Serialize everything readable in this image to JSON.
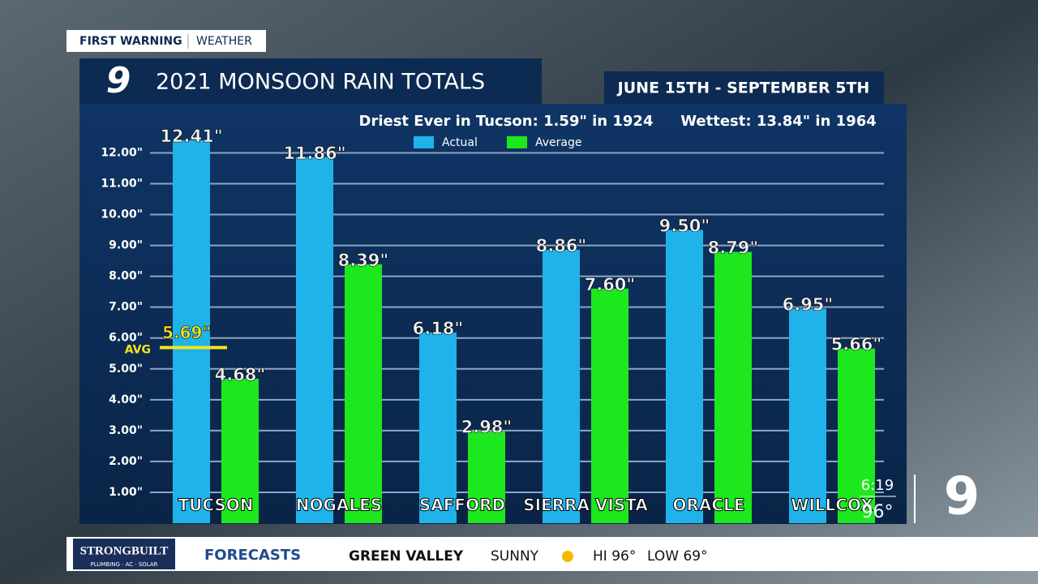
{
  "branding": {
    "brand": "FIRST WARNING",
    "section": "WEATHER",
    "channel": "9"
  },
  "chart_data": {
    "type": "bar",
    "title": "2021 MONSOON RAIN TOTALS",
    "subtitle": "JUNE 15TH - SEPTEMBER 5TH",
    "annotations": [
      "Driest Ever in Tucson: 1.59\" in 1924",
      "Wettest: 13.84\" in 1964"
    ],
    "categories": [
      "TUCSON",
      "NOGALES",
      "SAFFORD",
      "SIERRA VISTA",
      "ORACLE",
      "WILLCOX"
    ],
    "series": [
      {
        "name": "Actual",
        "color": "#1fb3ea",
        "values": [
          12.41,
          11.86,
          6.18,
          8.86,
          9.5,
          6.95
        ],
        "value_labels": [
          "12.41\"",
          "11.86\"",
          "6.18\"",
          "8.86\"",
          "9.50\"",
          "6.95\""
        ]
      },
      {
        "name": "Average",
        "color": "#1de81d",
        "values": [
          4.68,
          8.39,
          2.98,
          7.6,
          8.79,
          5.66
        ],
        "value_labels": [
          "4.68\"",
          "8.39\"",
          "2.98\"",
          "7.60\"",
          "8.79\"",
          "5.66\""
        ]
      }
    ],
    "ylim": [
      0,
      12.8
    ],
    "yticks": [
      {
        "value": 1,
        "label": "1.00\""
      },
      {
        "value": 2,
        "label": "2.00\""
      },
      {
        "value": 3,
        "label": "3.00\""
      },
      {
        "value": 4,
        "label": "4.00\""
      },
      {
        "value": 5,
        "label": "5.00\""
      },
      {
        "value": 6,
        "label": "6.00\""
      },
      {
        "value": 7,
        "label": "7.00\""
      },
      {
        "value": 8,
        "label": "8.00\""
      },
      {
        "value": 9,
        "label": "9.00\""
      },
      {
        "value": 10,
        "label": "10.00\""
      },
      {
        "value": 11,
        "label": "11.00\""
      },
      {
        "value": 12,
        "label": "12.00\""
      }
    ],
    "grid": true,
    "reference_line": {
      "label": "AVG",
      "value": 5.69,
      "value_label": "5.69\"",
      "color": "#f5e51b"
    }
  },
  "clock": {
    "time": "6:19",
    "temperature": "96°"
  },
  "ticker": {
    "sponsor": "STRONGBUILT",
    "sponsor_tagline": "PLUMBING · AC · SOLAR",
    "section": "FORECASTS",
    "location": "GREEN VALLEY",
    "condition": "SUNNY",
    "high": "HI 96°",
    "low": "LOW 69°"
  }
}
